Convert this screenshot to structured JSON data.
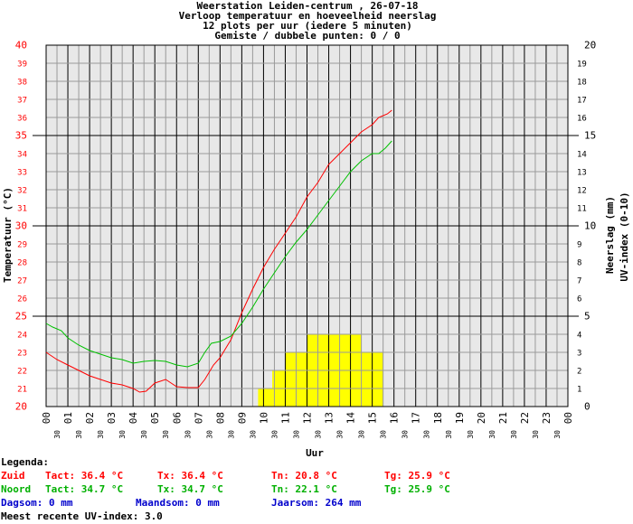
{
  "chart_data": {
    "type": "line",
    "title_lines": [
      "Weerstation Leiden-centrum , 26-07-18",
      "Verloop temperatuur en hoeveelheid neerslag",
      "12 plots per uur (iedere 5 minuten)",
      "Gemiste / dubbele punten: 0 / 0"
    ],
    "xlabel": "Uur",
    "ylabel_left": "Temperatuur (°C)",
    "ylabel_right_1": "Neerslag (mm)",
    "ylabel_right_2": "UV-index (0-10)",
    "x_hours": [
      "00",
      "01",
      "02",
      "03",
      "04",
      "05",
      "06",
      "07",
      "08",
      "09",
      "10",
      "11",
      "12",
      "13",
      "14",
      "15",
      "16",
      "17",
      "18",
      "19",
      "20",
      "21",
      "22",
      "23",
      "00"
    ],
    "x_half_label": "30",
    "xlim": [
      0,
      24
    ],
    "ylim_left": [
      20,
      40
    ],
    "ylim_right": [
      0,
      20
    ],
    "left_ticks": [
      20,
      21,
      22,
      23,
      24,
      25,
      26,
      27,
      28,
      29,
      30,
      31,
      32,
      33,
      34,
      35,
      36,
      37,
      38,
      39,
      40
    ],
    "right_ticks": [
      0,
      1,
      2,
      3,
      4,
      5,
      6,
      7,
      8,
      9,
      10,
      11,
      12,
      13,
      14,
      15,
      16,
      17,
      18,
      19,
      20
    ],
    "series": [
      {
        "name": "Zuid",
        "color": "#ff0000",
        "points": [
          [
            0,
            23.0
          ],
          [
            0.5,
            22.6
          ],
          [
            1.0,
            22.3
          ],
          [
            1.5,
            22.0
          ],
          [
            2.0,
            21.7
          ],
          [
            2.5,
            21.5
          ],
          [
            3.0,
            21.3
          ],
          [
            3.5,
            21.2
          ],
          [
            4.0,
            21.0
          ],
          [
            4.3,
            20.8
          ],
          [
            4.6,
            20.85
          ],
          [
            5.0,
            21.3
          ],
          [
            5.5,
            21.5
          ],
          [
            6.0,
            21.1
          ],
          [
            6.5,
            21.05
          ],
          [
            7.0,
            21.05
          ],
          [
            7.3,
            21.5
          ],
          [
            7.7,
            22.3
          ],
          [
            8.0,
            22.7
          ],
          [
            8.5,
            23.7
          ],
          [
            9.0,
            25.2
          ],
          [
            9.5,
            26.5
          ],
          [
            10.0,
            27.7
          ],
          [
            10.5,
            28.7
          ],
          [
            11.0,
            29.6
          ],
          [
            11.5,
            30.5
          ],
          [
            12.0,
            31.6
          ],
          [
            12.5,
            32.4
          ],
          [
            13.0,
            33.4
          ],
          [
            13.5,
            34.0
          ],
          [
            14.0,
            34.6
          ],
          [
            14.5,
            35.2
          ],
          [
            15.0,
            35.6
          ],
          [
            15.3,
            36.0
          ],
          [
            15.7,
            36.2
          ],
          [
            15.9,
            36.4
          ]
        ]
      },
      {
        "name": "Noord",
        "color": "#00c000",
        "points": [
          [
            0,
            24.6
          ],
          [
            0.3,
            24.4
          ],
          [
            0.7,
            24.2
          ],
          [
            1.0,
            23.8
          ],
          [
            1.5,
            23.4
          ],
          [
            2.0,
            23.1
          ],
          [
            2.5,
            22.9
          ],
          [
            3.0,
            22.7
          ],
          [
            3.5,
            22.6
          ],
          [
            4.0,
            22.4
          ],
          [
            4.5,
            22.5
          ],
          [
            5.0,
            22.55
          ],
          [
            5.5,
            22.5
          ],
          [
            6.0,
            22.3
          ],
          [
            6.5,
            22.2
          ],
          [
            7.0,
            22.4
          ],
          [
            7.3,
            23.0
          ],
          [
            7.6,
            23.5
          ],
          [
            8.0,
            23.6
          ],
          [
            8.5,
            23.9
          ],
          [
            9.0,
            24.6
          ],
          [
            9.5,
            25.5
          ],
          [
            10.0,
            26.5
          ],
          [
            10.5,
            27.4
          ],
          [
            11.0,
            28.3
          ],
          [
            11.5,
            29.1
          ],
          [
            12.0,
            29.8
          ],
          [
            12.5,
            30.6
          ],
          [
            13.0,
            31.4
          ],
          [
            13.5,
            32.2
          ],
          [
            14.0,
            33.0
          ],
          [
            14.5,
            33.6
          ],
          [
            15.0,
            34.0
          ],
          [
            15.3,
            34.0
          ],
          [
            15.6,
            34.3
          ],
          [
            15.9,
            34.7
          ]
        ]
      }
    ],
    "precipitation_bars": {
      "color": "#ffff00",
      "bars": [
        [
          9.75,
          10.4,
          1
        ],
        [
          10.4,
          11.0,
          2
        ],
        [
          11.0,
          12.0,
          3
        ],
        [
          12.0,
          14.5,
          4
        ],
        [
          14.5,
          15.5,
          3
        ]
      ]
    },
    "grid": true
  },
  "legend": {
    "header": "Legenda:",
    "zuid": {
      "label": "Zuid",
      "tact": "Tact: 36.4 °C",
      "tx": "Tx: 36.4 °C",
      "tn": "Tn: 20.8 °C",
      "tg": "Tg: 25.9 °C"
    },
    "noord": {
      "label": "Noord",
      "tact": "Tact: 34.7 °C",
      "tx": "Tx: 34.7 °C",
      "tn": "Tn: 22.1 °C",
      "tg": "Tg: 25.9 °C"
    },
    "dagsom": "Dagsom: 0 mm",
    "maandsom": "Maandsom: 0 mm",
    "jaarsom": "Jaarsom: 264 mm",
    "uv": "Meest recente UV-index: 3.0"
  }
}
